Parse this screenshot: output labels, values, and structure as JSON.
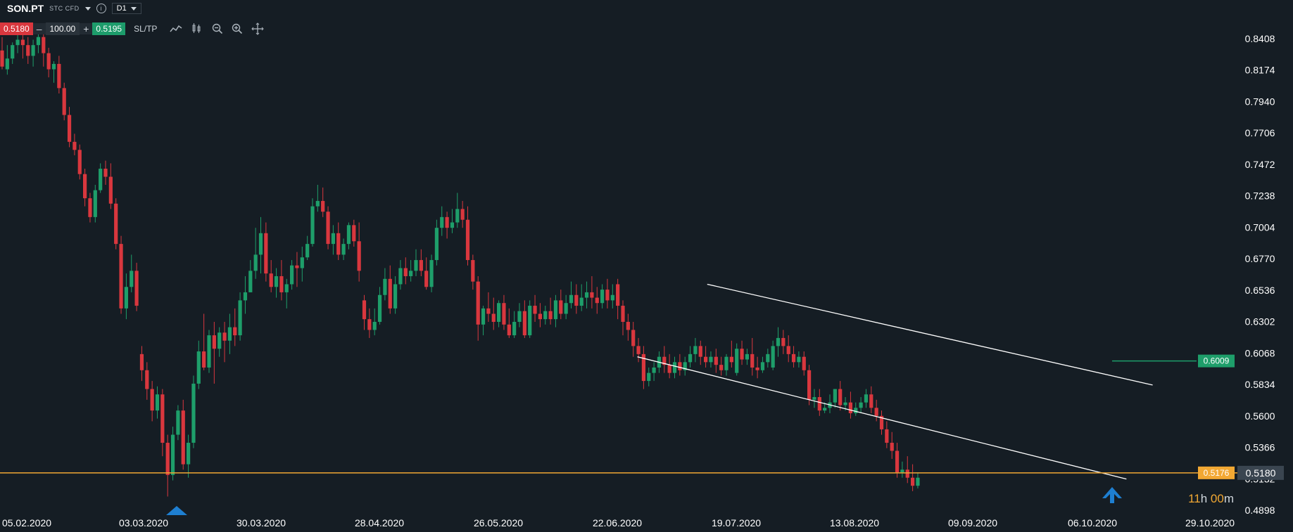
{
  "header": {
    "symbol": "SON.PT",
    "instrument_type": "STC CFD",
    "timeframe": "D1",
    "bid": "0.5180",
    "quantity": "100.00",
    "ask": "0.5195",
    "minus": "–",
    "plus": "+",
    "sltp_label": "SL/TP",
    "info_glyph": "i"
  },
  "chart_data": {
    "type": "candlestick",
    "y_ticks": [
      "0.8408",
      "0.8174",
      "0.7940",
      "0.7706",
      "0.7472",
      "0.7238",
      "0.7004",
      "0.6770",
      "0.6536",
      "0.6302",
      "0.6068",
      "0.5834",
      "0.5600",
      "0.5366",
      "0.5132",
      "0.4898"
    ],
    "y_range": [
      0.4898,
      0.8408
    ],
    "x_ticks": [
      "05.02.2020",
      "03.03.2020",
      "30.03.2020",
      "28.04.2020",
      "26.05.2020",
      "22.06.2020",
      "19.07.2020",
      "13.08.2020",
      "09.09.2020",
      "06.10.2020",
      "29.10.2020"
    ],
    "current_price": "0.5180",
    "support_level": "0.5176",
    "target_level": "0.6009",
    "countdown": {
      "hours": "11",
      "hours_unit": "h",
      "minutes": "00",
      "minutes_unit": "m"
    },
    "colors": {
      "up": "#1e9e6a",
      "down": "#d9373e",
      "price_line": "#f2a833",
      "target": "#1e9e6a",
      "channel": "#ffffff",
      "arrow": "#1e7fd1"
    },
    "channel": {
      "upper": [
        [
          "2020-07-15",
          0.658
        ],
        [
          "2020-10-25",
          0.583
        ]
      ],
      "lower": [
        [
          "2020-06-29",
          0.604
        ],
        [
          "2020-10-19",
          0.513
        ]
      ]
    },
    "candles": [
      [
        0.832,
        0.842,
        0.82,
        0.818
      ],
      [
        0.818,
        0.836,
        0.826,
        0.814
      ],
      [
        0.826,
        0.838,
        0.836,
        0.822
      ],
      [
        0.836,
        0.845,
        0.84,
        0.83
      ],
      [
        0.84,
        0.848,
        0.836,
        0.826
      ],
      [
        0.836,
        0.842,
        0.828,
        0.822
      ],
      [
        0.828,
        0.84,
        0.836,
        0.82
      ],
      [
        0.836,
        0.846,
        0.842,
        0.83
      ],
      [
        0.842,
        0.85,
        0.83,
        0.82
      ],
      [
        0.83,
        0.834,
        0.818,
        0.812
      ],
      [
        0.818,
        0.824,
        0.822,
        0.808
      ],
      [
        0.822,
        0.828,
        0.804,
        0.8
      ],
      [
        0.804,
        0.808,
        0.784,
        0.78
      ],
      [
        0.784,
        0.79,
        0.764,
        0.76
      ],
      [
        0.764,
        0.77,
        0.758,
        0.754
      ],
      [
        0.758,
        0.762,
        0.74,
        0.736
      ],
      [
        0.74,
        0.744,
        0.722,
        0.716
      ],
      [
        0.722,
        0.726,
        0.708,
        0.704
      ],
      [
        0.708,
        0.732,
        0.728,
        0.704
      ],
      [
        0.728,
        0.748,
        0.744,
        0.726
      ],
      [
        0.744,
        0.75,
        0.738,
        0.732
      ],
      [
        0.738,
        0.748,
        0.718,
        0.714
      ],
      [
        0.718,
        0.722,
        0.688,
        0.684
      ],
      [
        0.688,
        0.694,
        0.64,
        0.636
      ],
      [
        0.64,
        0.666,
        0.656,
        0.632
      ],
      [
        0.656,
        0.68,
        0.668,
        0.652
      ],
      [
        0.668,
        0.674,
        0.642,
        0.638
      ],
      [
        0.606,
        0.612,
        0.594,
        0.586
      ],
      [
        0.594,
        0.6,
        0.58,
        0.572
      ],
      [
        0.58,
        0.586,
        0.564,
        0.556
      ],
      [
        0.564,
        0.582,
        0.576,
        0.558
      ],
      [
        0.576,
        0.58,
        0.54,
        0.53
      ],
      [
        0.54,
        0.546,
        0.516,
        0.5
      ],
      [
        0.516,
        0.552,
        0.546,
        0.512
      ],
      [
        0.546,
        0.568,
        0.564,
        0.542
      ],
      [
        0.564,
        0.572,
        0.524,
        0.52
      ],
      [
        0.524,
        0.546,
        0.54,
        0.514
      ],
      [
        0.54,
        0.59,
        0.584,
        0.536
      ],
      [
        0.584,
        0.616,
        0.608,
        0.58
      ],
      [
        0.608,
        0.636,
        0.596,
        0.594
      ],
      [
        0.596,
        0.624,
        0.62,
        0.592
      ],
      [
        0.62,
        0.63,
        0.61,
        0.584
      ],
      [
        0.61,
        0.626,
        0.622,
        0.604
      ],
      [
        0.622,
        0.63,
        0.616,
        0.6
      ],
      [
        0.616,
        0.636,
        0.626,
        0.606
      ],
      [
        0.626,
        0.64,
        0.62,
        0.612
      ],
      [
        0.62,
        0.652,
        0.646,
        0.616
      ],
      [
        0.646,
        0.664,
        0.652,
        0.636
      ],
      [
        0.652,
        0.676,
        0.668,
        0.652
      ],
      [
        0.668,
        0.7,
        0.68,
        0.662
      ],
      [
        0.68,
        0.708,
        0.696,
        0.666
      ],
      [
        0.696,
        0.704,
        0.666,
        0.66
      ],
      [
        0.666,
        0.676,
        0.656,
        0.652
      ],
      [
        0.656,
        0.67,
        0.664,
        0.648
      ],
      [
        0.664,
        0.676,
        0.652,
        0.646
      ],
      [
        0.652,
        0.662,
        0.658,
        0.64
      ],
      [
        0.658,
        0.676,
        0.672,
        0.654
      ],
      [
        0.672,
        0.682,
        0.67,
        0.656
      ],
      [
        0.67,
        0.686,
        0.678,
        0.66
      ],
      [
        0.678,
        0.694,
        0.688,
        0.676
      ],
      [
        0.688,
        0.722,
        0.716,
        0.686
      ],
      [
        0.716,
        0.732,
        0.72,
        0.712
      ],
      [
        0.72,
        0.73,
        0.712,
        0.708
      ],
      [
        0.712,
        0.716,
        0.688,
        0.684
      ],
      [
        0.688,
        0.702,
        0.696,
        0.68
      ],
      [
        0.696,
        0.704,
        0.68,
        0.676
      ],
      [
        0.68,
        0.692,
        0.688,
        0.676
      ],
      [
        0.688,
        0.704,
        0.702,
        0.684
      ],
      [
        0.702,
        0.706,
        0.69,
        0.686
      ],
      [
        0.69,
        0.704,
        0.668,
        0.66
      ],
      [
        0.646,
        0.65,
        0.632,
        0.624
      ],
      [
        0.632,
        0.64,
        0.624,
        0.618
      ],
      [
        0.624,
        0.64,
        0.63,
        0.62
      ],
      [
        0.63,
        0.656,
        0.65,
        0.628
      ],
      [
        0.65,
        0.67,
        0.662,
        0.646
      ],
      [
        0.662,
        0.672,
        0.64,
        0.636
      ],
      [
        0.64,
        0.664,
        0.658,
        0.636
      ],
      [
        0.658,
        0.676,
        0.67,
        0.654
      ],
      [
        0.67,
        0.678,
        0.664,
        0.658
      ],
      [
        0.664,
        0.676,
        0.668,
        0.66
      ],
      [
        0.668,
        0.684,
        0.676,
        0.664
      ],
      [
        0.676,
        0.684,
        0.668,
        0.664
      ],
      [
        0.668,
        0.678,
        0.656,
        0.654
      ],
      [
        0.656,
        0.68,
        0.676,
        0.652
      ],
      [
        0.676,
        0.706,
        0.7,
        0.672
      ],
      [
        0.7,
        0.716,
        0.708,
        0.694
      ],
      [
        0.708,
        0.712,
        0.7,
        0.692
      ],
      [
        0.7,
        0.714,
        0.704,
        0.696
      ],
      [
        0.704,
        0.726,
        0.714,
        0.7
      ],
      [
        0.714,
        0.72,
        0.706,
        0.7
      ],
      [
        0.706,
        0.716,
        0.676,
        0.672
      ],
      [
        0.676,
        0.68,
        0.66,
        0.654
      ],
      [
        0.66,
        0.664,
        0.628,
        0.616
      ],
      [
        0.628,
        0.642,
        0.64,
        0.62
      ],
      [
        0.64,
        0.652,
        0.636,
        0.63
      ],
      [
        0.636,
        0.648,
        0.63,
        0.624
      ],
      [
        0.63,
        0.646,
        0.644,
        0.626
      ],
      [
        0.644,
        0.65,
        0.628,
        0.624
      ],
      [
        0.628,
        0.64,
        0.62,
        0.618
      ],
      [
        0.62,
        0.638,
        0.63,
        0.618
      ],
      [
        0.63,
        0.644,
        0.638,
        0.626
      ],
      [
        0.638,
        0.646,
        0.62,
        0.618
      ],
      [
        0.62,
        0.646,
        0.642,
        0.618
      ],
      [
        0.642,
        0.65,
        0.636,
        0.63
      ],
      [
        0.636,
        0.644,
        0.632,
        0.626
      ],
      [
        0.632,
        0.642,
        0.638,
        0.628
      ],
      [
        0.638,
        0.648,
        0.632,
        0.628
      ],
      [
        0.632,
        0.65,
        0.646,
        0.626
      ],
      [
        0.646,
        0.654,
        0.636,
        0.632
      ],
      [
        0.636,
        0.65,
        0.644,
        0.632
      ],
      [
        0.644,
        0.66,
        0.65,
        0.64
      ],
      [
        0.65,
        0.658,
        0.642,
        0.636
      ],
      [
        0.642,
        0.658,
        0.648,
        0.638
      ],
      [
        0.648,
        0.66,
        0.652,
        0.64
      ],
      [
        0.652,
        0.664,
        0.648,
        0.64
      ],
      [
        0.648,
        0.656,
        0.644,
        0.636
      ],
      [
        0.644,
        0.658,
        0.654,
        0.64
      ],
      [
        0.654,
        0.662,
        0.646,
        0.64
      ],
      [
        0.646,
        0.658,
        0.65,
        0.64
      ],
      [
        0.658,
        0.662,
        0.642,
        0.632
      ],
      [
        0.642,
        0.646,
        0.63,
        0.62
      ],
      [
        0.63,
        0.636,
        0.624,
        0.616
      ],
      [
        0.624,
        0.63,
        0.612,
        0.604
      ],
      [
        0.612,
        0.618,
        0.606,
        0.6
      ],
      [
        0.606,
        0.612,
        0.586,
        0.58
      ],
      [
        0.586,
        0.596,
        0.592,
        0.582
      ],
      [
        0.592,
        0.6,
        0.596,
        0.586
      ],
      [
        0.596,
        0.608,
        0.604,
        0.592
      ],
      [
        0.604,
        0.612,
        0.598,
        0.592
      ],
      [
        0.598,
        0.606,
        0.592,
        0.588
      ],
      [
        0.592,
        0.604,
        0.6,
        0.588
      ],
      [
        0.6,
        0.606,
        0.594,
        0.59
      ],
      [
        0.594,
        0.604,
        0.6,
        0.59
      ],
      [
        0.6,
        0.612,
        0.606,
        0.596
      ],
      [
        0.606,
        0.618,
        0.612,
        0.6
      ],
      [
        0.612,
        0.616,
        0.604,
        0.598
      ],
      [
        0.604,
        0.612,
        0.6,
        0.596
      ],
      [
        0.6,
        0.608,
        0.604,
        0.596
      ],
      [
        0.604,
        0.61,
        0.598,
        0.592
      ],
      [
        0.598,
        0.604,
        0.594,
        0.59
      ],
      [
        0.594,
        0.606,
        0.604,
        0.59
      ],
      [
        0.604,
        0.616,
        0.6,
        0.596
      ],
      [
        0.592,
        0.614,
        0.61,
        0.59
      ],
      [
        0.61,
        0.616,
        0.602,
        0.598
      ],
      [
        0.602,
        0.61,
        0.606,
        0.598
      ],
      [
        0.606,
        0.618,
        0.596,
        0.59
      ],
      [
        0.596,
        0.604,
        0.594,
        0.588
      ],
      [
        0.594,
        0.604,
        0.6,
        0.592
      ],
      [
        0.6,
        0.61,
        0.606,
        0.596
      ],
      [
        0.596,
        0.616,
        0.612,
        0.594
      ],
      [
        0.612,
        0.626,
        0.618,
        0.604
      ],
      [
        0.618,
        0.624,
        0.612,
        0.606
      ],
      [
        0.612,
        0.62,
        0.606,
        0.6
      ],
      [
        0.606,
        0.612,
        0.6,
        0.596
      ],
      [
        0.6,
        0.608,
        0.604,
        0.596
      ],
      [
        0.604,
        0.608,
        0.594,
        0.59
      ],
      [
        0.594,
        0.598,
        0.572,
        0.568
      ],
      [
        0.572,
        0.58,
        0.574,
        0.566
      ],
      [
        0.574,
        0.58,
        0.564,
        0.56
      ],
      [
        0.564,
        0.57,
        0.566,
        0.562
      ],
      [
        0.566,
        0.576,
        0.57,
        0.562
      ],
      [
        0.57,
        0.58,
        0.58,
        0.566
      ],
      [
        0.58,
        0.586,
        0.568,
        0.564
      ],
      [
        0.568,
        0.574,
        0.57,
        0.564
      ],
      [
        0.57,
        0.578,
        0.562,
        0.558
      ],
      [
        0.562,
        0.57,
        0.566,
        0.56
      ],
      [
        0.566,
        0.574,
        0.57,
        0.562
      ],
      [
        0.57,
        0.58,
        0.576,
        0.566
      ],
      [
        0.576,
        0.582,
        0.566,
        0.562
      ],
      [
        0.566,
        0.572,
        0.56,
        0.556
      ],
      [
        0.56,
        0.564,
        0.55,
        0.546
      ],
      [
        0.55,
        0.556,
        0.54,
        0.536
      ],
      [
        0.54,
        0.548,
        0.534,
        0.528
      ],
      [
        0.534,
        0.54,
        0.518,
        0.514
      ],
      [
        0.518,
        0.526,
        0.52,
        0.514
      ],
      [
        0.52,
        0.53,
        0.514,
        0.51
      ],
      [
        0.514,
        0.524,
        0.508,
        0.504
      ],
      [
        0.508,
        0.518,
        0.514,
        0.506
      ]
    ]
  }
}
